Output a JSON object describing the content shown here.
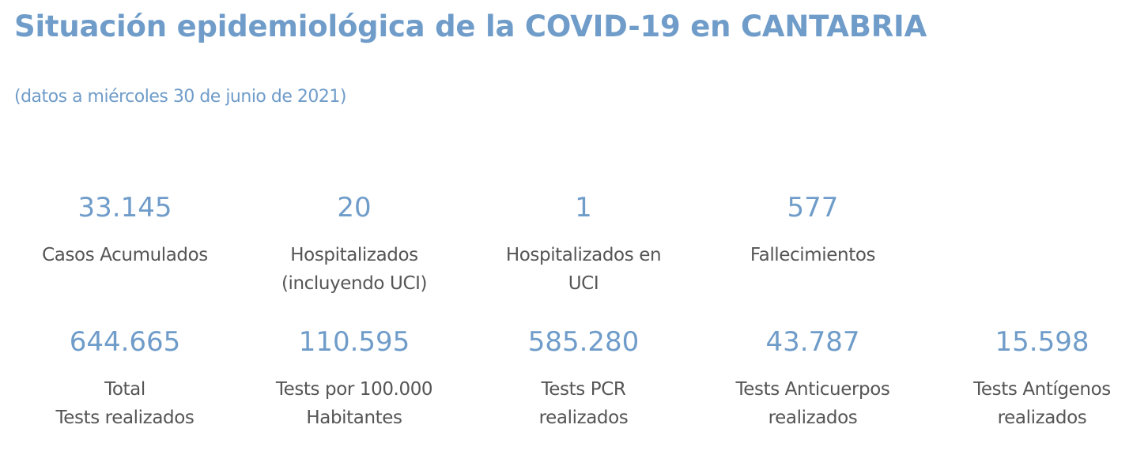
{
  "header": {
    "title": "Situación epidemiológica de la COVID-19 en CANTABRIA",
    "subtitle": "(datos a miércoles 30 de junio de 2021)"
  },
  "stats_row1": [
    {
      "value": "33.145",
      "label": "Casos Acumulados"
    },
    {
      "value": "20",
      "label": "Hospitalizados\n(incluyendo UCI)"
    },
    {
      "value": "1",
      "label": "Hospitalizados en\nUCI"
    },
    {
      "value": "577",
      "label": "Fallecimientos"
    }
  ],
  "stats_row2": [
    {
      "value": "644.665",
      "label": "Total\nTests realizados"
    },
    {
      "value": "110.595",
      "label": "Tests por 100.000\nHabitantes"
    },
    {
      "value": "585.280",
      "label": "Tests PCR\nrealizados"
    },
    {
      "value": "43.787",
      "label": "Tests Anticuerpos\nrealizados"
    },
    {
      "value": "15.598",
      "label": "Tests Antígenos\nrealizados"
    }
  ],
  "colors": {
    "accent": "#6f9cc9",
    "label_text": "#555555"
  }
}
